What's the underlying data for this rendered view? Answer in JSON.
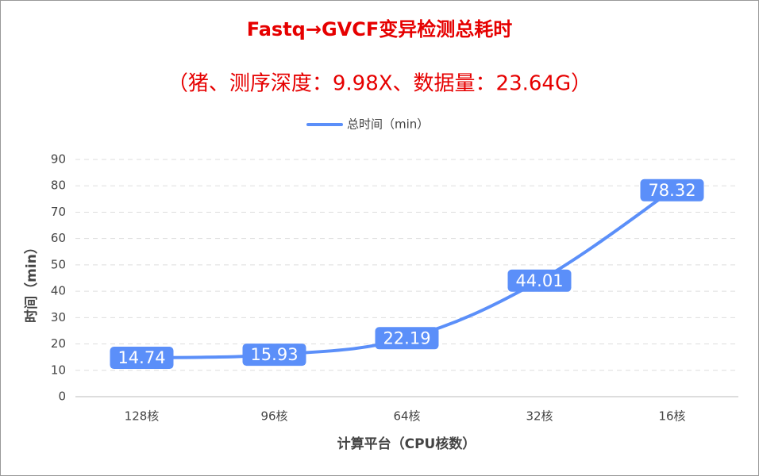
{
  "chart_data": {
    "type": "line",
    "title": "Fastq→GVCF变异检测总耗时",
    "subtitle": "（猪、测序深度：9.98X、数据量：23.64G）",
    "x_label": "计算平台（CPU核数）",
    "y_label": "时间（min）",
    "categories": [
      "128核",
      "96核",
      "64核",
      "32核",
      "16核"
    ],
    "series": [
      {
        "name": "总时间（min）",
        "color": "#5b8ff9",
        "values": [
          14.74,
          15.93,
          22.19,
          44.01,
          78.32
        ]
      }
    ],
    "ylim": [
      0,
      90
    ],
    "yticks": [
      0,
      10,
      20,
      30,
      40,
      50,
      60,
      70,
      80,
      90
    ],
    "grid": true,
    "legend": "top"
  }
}
